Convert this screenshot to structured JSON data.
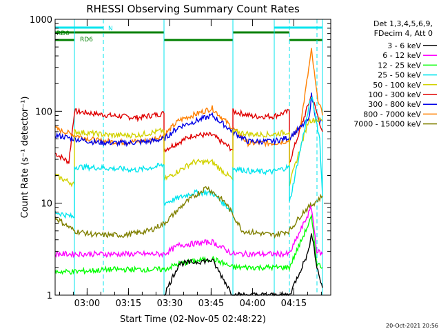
{
  "chart_data": {
    "type": "line",
    "title": "RHESSI Observing Summary Count Rates",
    "xlabel": "Start Time (02-Nov-05 02:48:22)",
    "ylabel": "Count Rate (s⁻¹ detector⁻¹)",
    "yscale": "log",
    "ylim": [
      1,
      1000
    ],
    "xlim_minutes": [
      0,
      100
    ],
    "x_ticks": [
      {
        "label": "03:00",
        "minute": 11.6
      },
      {
        "label": "03:15",
        "minute": 26.6
      },
      {
        "label": "03:30",
        "minute": 41.6
      },
      {
        "label": "03:45",
        "minute": 56.6
      },
      {
        "label": "04:00",
        "minute": 71.6
      },
      {
        "label": "04:15",
        "minute": 86.6
      }
    ],
    "y_ticks": [
      {
        "label": "1",
        "value": 1
      },
      {
        "label": "10",
        "value": 10
      },
      {
        "label": "100",
        "value": 100
      },
      {
        "label": "1000",
        "value": 1000
      }
    ],
    "legend": {
      "placement": "right",
      "header": [
        "Det 1,3,4,5,6,9,",
        "FDecim 4, Att 0"
      ],
      "entries": [
        {
          "label": "3 - 6 keV",
          "color": "#000000"
        },
        {
          "label": "6 - 12 keV",
          "color": "#ff00ff"
        },
        {
          "label": "12 - 25 keV",
          "color": "#00ff00"
        },
        {
          "label": "25 - 50 keV",
          "color": "#00e5ee"
        },
        {
          "label": "50 - 100 keV",
          "color": "#d2d200"
        },
        {
          "label": "100 - 300 keV",
          "color": "#e00000"
        },
        {
          "label": "300 - 800 keV",
          "color": "#0000e6"
        },
        {
          "label": "800 - 7000 keV",
          "color": "#ff8000"
        },
        {
          "label": "7000 - 15000 keV",
          "color": "#808000"
        }
      ]
    },
    "flag_bars": [
      {
        "label": "",
        "color": "#00e5ee",
        "segments": [
          [
            0,
            17.5
          ],
          [
            79.5,
            97
          ]
        ]
      },
      {
        "label": "N",
        "color": "#00e5ee",
        "segments": []
      },
      {
        "label": "RD0",
        "color": "#008000",
        "segments": [
          [
            0,
            39.5
          ],
          [
            64.5,
            85
          ]
        ]
      },
      {
        "label": "RD6",
        "color": "#008000",
        "segments": [
          [
            0,
            7
          ],
          [
            39.5,
            64.5
          ],
          [
            85,
            97
          ]
        ]
      }
    ],
    "saa_night_lines": {
      "solid_minutes": [
        7,
        39.5,
        64.5,
        79.5,
        97
      ],
      "dashed_minutes": [
        17.5,
        85,
        95
      ]
    },
    "series": [
      {
        "name": "100 - 300 keV",
        "color": "#e00000",
        "points": [
          [
            0,
            35
          ],
          [
            5,
            28
          ],
          [
            7,
            100
          ],
          [
            20,
            90
          ],
          [
            30,
            85
          ],
          [
            39.5,
            95
          ],
          [
            39.5,
            38
          ],
          [
            50,
            55
          ],
          [
            57,
            55
          ],
          [
            64.5,
            38
          ],
          [
            64.5,
            100
          ],
          [
            72,
            88
          ],
          [
            79,
            88
          ],
          [
            85,
            100
          ],
          [
            85,
            28
          ],
          [
            93,
            150
          ],
          [
            97,
            60
          ]
        ]
      },
      {
        "name": "800 - 7000 keV",
        "color": "#ff8000",
        "points": [
          [
            0,
            65
          ],
          [
            7,
            55
          ],
          [
            15,
            48
          ],
          [
            25,
            46
          ],
          [
            34,
            48
          ],
          [
            39.5,
            55
          ],
          [
            45,
            80
          ],
          [
            57,
            108
          ],
          [
            64.5,
            65
          ],
          [
            70,
            45
          ],
          [
            79,
            45
          ],
          [
            85,
            48
          ],
          [
            89,
            70
          ],
          [
            93,
            460
          ],
          [
            95,
            150
          ],
          [
            97,
            90
          ]
        ]
      },
      {
        "name": "300 - 800 keV",
        "color": "#0000e6",
        "points": [
          [
            0,
            55
          ],
          [
            7,
            50
          ],
          [
            15,
            46
          ],
          [
            25,
            45
          ],
          [
            34,
            47
          ],
          [
            39.5,
            50
          ],
          [
            45,
            68
          ],
          [
            57,
            90
          ],
          [
            64.5,
            60
          ],
          [
            70,
            47
          ],
          [
            79,
            47
          ],
          [
            85,
            52
          ],
          [
            92,
            80
          ],
          [
            93,
            150
          ],
          [
            95,
            75
          ],
          [
            97,
            78
          ]
        ]
      },
      {
        "name": "50 - 100 keV",
        "color": "#d2d200",
        "points": [
          [
            0,
            20
          ],
          [
            7,
            16
          ],
          [
            7,
            60
          ],
          [
            20,
            55
          ],
          [
            30,
            55
          ],
          [
            39.5,
            62
          ],
          [
            39.5,
            18
          ],
          [
            50,
            28
          ],
          [
            57,
            28
          ],
          [
            64.5,
            18
          ],
          [
            64.5,
            60
          ],
          [
            72,
            56
          ],
          [
            79,
            56
          ],
          [
            85,
            60
          ],
          [
            85,
            16
          ],
          [
            92,
            80
          ],
          [
            97,
            80
          ]
        ]
      },
      {
        "name": "25 - 50 keV",
        "color": "#00e5ee",
        "points": [
          [
            0,
            8
          ],
          [
            7,
            7
          ],
          [
            7,
            25
          ],
          [
            20,
            24
          ],
          [
            30,
            23
          ],
          [
            39.5,
            26
          ],
          [
            39.5,
            10
          ],
          [
            50,
            13
          ],
          [
            57,
            13
          ],
          [
            64.5,
            8
          ],
          [
            64.5,
            24
          ],
          [
            72,
            22
          ],
          [
            79,
            22
          ],
          [
            85,
            25
          ],
          [
            85,
            10
          ],
          [
            93,
            150
          ],
          [
            96,
            50
          ],
          [
            97,
            12
          ]
        ]
      },
      {
        "name": "7000 - 15000 keV",
        "color": "#808000",
        "points": [
          [
            0,
            7
          ],
          [
            7,
            5
          ],
          [
            15,
            4.5
          ],
          [
            25,
            4.5
          ],
          [
            34,
            5
          ],
          [
            39.5,
            6
          ],
          [
            47,
            10
          ],
          [
            55,
            15
          ],
          [
            62,
            10
          ],
          [
            68,
            5
          ],
          [
            79,
            4.5
          ],
          [
            85,
            5
          ],
          [
            90,
            8
          ],
          [
            97,
            12
          ]
        ]
      },
      {
        "name": "6 - 12 keV",
        "color": "#ff00ff",
        "points": [
          [
            0,
            2.8
          ],
          [
            7,
            2.8
          ],
          [
            20,
            2.8
          ],
          [
            39.5,
            2.8
          ],
          [
            45,
            3.5
          ],
          [
            57,
            3.8
          ],
          [
            64.5,
            2.8
          ],
          [
            79,
            2.8
          ],
          [
            85,
            2.8
          ],
          [
            93,
            9
          ],
          [
            95,
            3
          ],
          [
            97,
            2.8
          ]
        ]
      },
      {
        "name": "12 - 25 keV",
        "color": "#00ff00",
        "points": [
          [
            0,
            1.8
          ],
          [
            7,
            1.8
          ],
          [
            20,
            1.9
          ],
          [
            39.5,
            1.9
          ],
          [
            45,
            2.2
          ],
          [
            57,
            2.5
          ],
          [
            64.5,
            2
          ],
          [
            79,
            2
          ],
          [
            85,
            2
          ],
          [
            93,
            7
          ],
          [
            95,
            2.2
          ],
          [
            97,
            2
          ]
        ]
      },
      {
        "name": "3 - 6 keV",
        "color": "#000000",
        "points": [
          [
            39.5,
            1
          ],
          [
            45,
            2.2
          ],
          [
            57,
            2.4
          ],
          [
            64.5,
            1
          ],
          [
            85,
            1
          ],
          [
            92,
            3
          ],
          [
            93,
            5
          ],
          [
            95,
            2
          ],
          [
            97,
            1.2
          ]
        ]
      }
    ]
  },
  "footer": {
    "date": "20-Oct-2021 20:56"
  }
}
